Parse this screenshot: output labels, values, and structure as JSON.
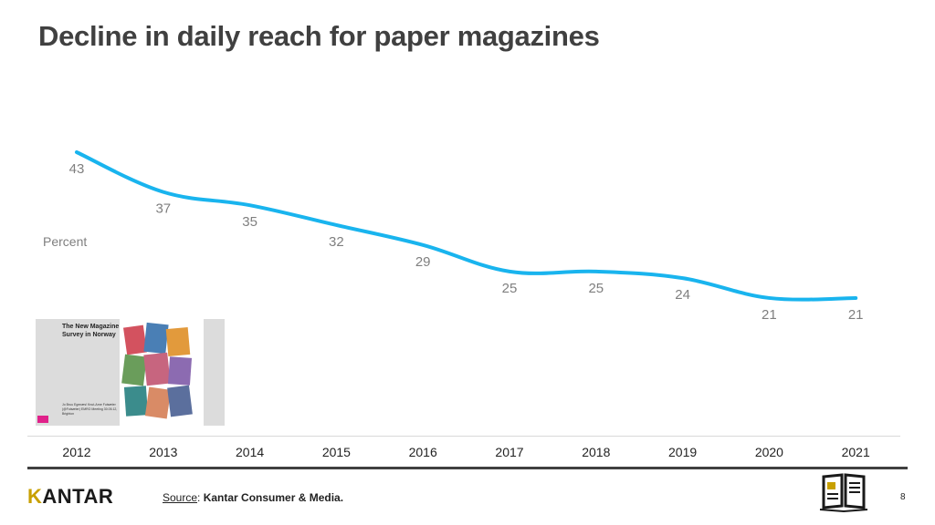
{
  "slide": {
    "title": "Decline in daily reach for paper magazines",
    "page_number": "8"
  },
  "chart_data": {
    "type": "line",
    "title": "Decline in daily reach for paper magazines",
    "ylabel": "Percent",
    "xlabel": "",
    "x": [
      "2012",
      "2013",
      "2014",
      "2015",
      "2016",
      "2017",
      "2018",
      "2019",
      "2020",
      "2021"
    ],
    "series": [
      {
        "values": [
          43,
          37,
          35,
          32,
          29,
          25,
          25,
          24,
          21,
          21
        ]
      }
    ],
    "line_color": "#19b4ee",
    "label_color": "#7f7f7f",
    "grid": false,
    "legend": "none"
  },
  "thumbnail": {
    "title": "The New Magazine Survey in Norway",
    "details": "Jo Bruu Egenæs! Knut-Arne Futsæter (@Futsæter) EMRO Meeting 30.05.12, Brighton"
  },
  "footer": {
    "logo": "KANTAR",
    "source_label": "Source",
    "source_text": "Kantar Consumer & Media.",
    "partner_logo": "MAGASINUNDERSØKELSEN"
  },
  "colors": {
    "title": "#404040",
    "accent_line": "#19b4ee",
    "footer_rule": "#404040"
  }
}
